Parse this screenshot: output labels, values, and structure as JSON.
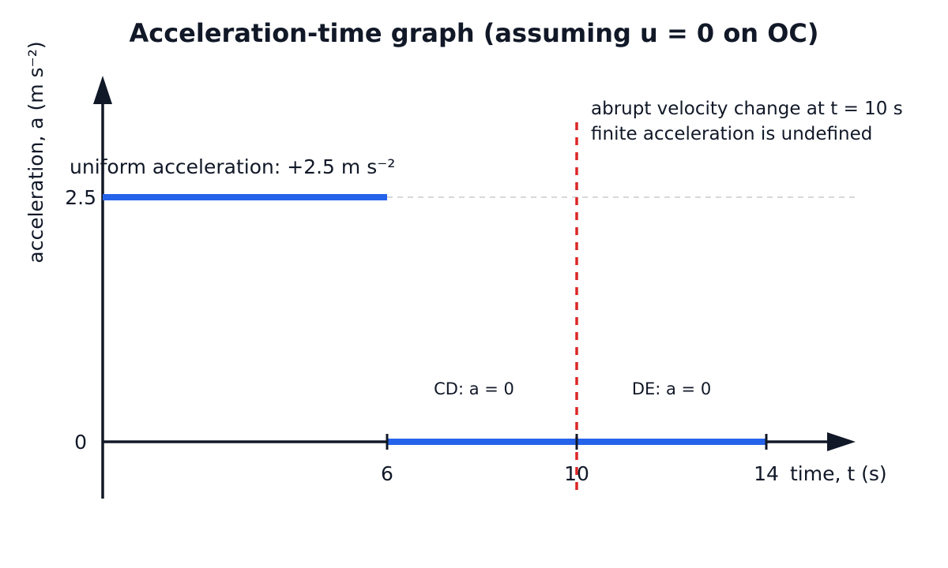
{
  "chart_data": {
    "type": "line",
    "title": "Acceleration-time graph (assuming u = 0 on OC)",
    "xlabel": "time, t (s)",
    "ylabel": "acceleration, a (m s⁻²)",
    "x_ticks": [
      "6",
      "10",
      "14"
    ],
    "x_tick_values": [
      6,
      10,
      14
    ],
    "y_ticks": [
      "0",
      "2.5"
    ],
    "y_tick_values": [
      0,
      2.5
    ],
    "xlim": [
      0,
      18.5
    ],
    "ylim": [
      -1.2,
      7.4
    ],
    "series": [
      {
        "segments": [
          {
            "x": [
              0,
              6
            ],
            "y": [
              2.5,
              2.5
            ]
          },
          {
            "x": [
              6,
              10
            ],
            "y": [
              0,
              0
            ]
          },
          {
            "x": [
              10,
              14
            ],
            "y": [
              0,
              0
            ]
          }
        ],
        "color": "#2563eb"
      }
    ],
    "reference_lines": [
      {
        "axis": "y",
        "value": 2.5,
        "style": "dashed",
        "color": "#cccccc"
      },
      {
        "axis": "x",
        "value": 10,
        "style": "dashed",
        "color": "#dc2626"
      }
    ],
    "annotations": [
      {
        "text": "uniform acceleration: +2.5 m s⁻²"
      },
      {
        "text": "abrupt velocity change at t = 10 s"
      },
      {
        "text": "finite acceleration is undefined"
      },
      {
        "text": "CD: a = 0"
      },
      {
        "text": "DE: a = 0"
      }
    ],
    "grid": false,
    "colors": {
      "axis": "#111827",
      "line": "#2563eb",
      "marker": "#dc2626",
      "guide": "#cccccc"
    }
  }
}
